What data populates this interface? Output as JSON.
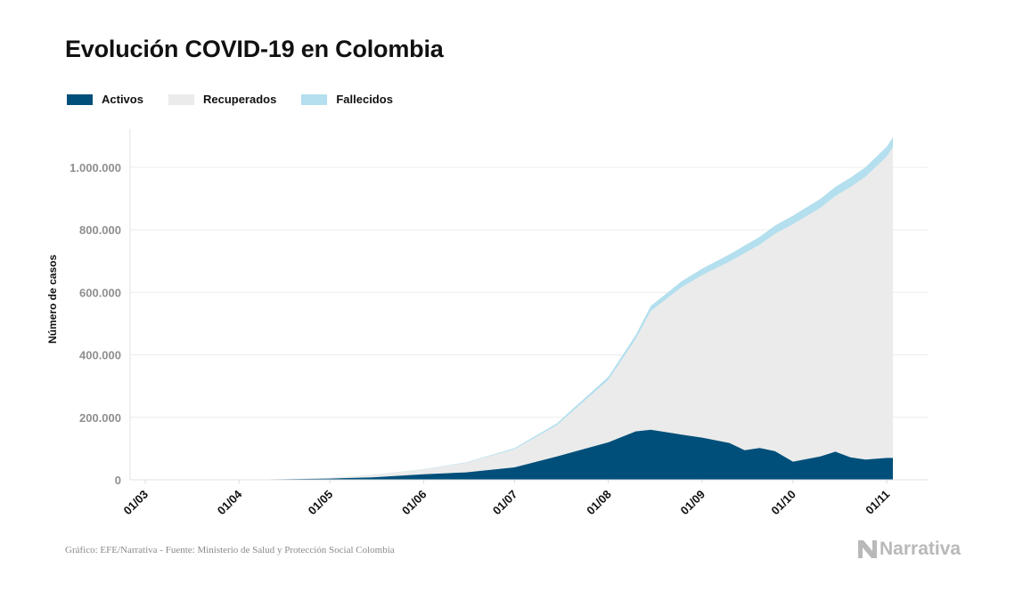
{
  "title": "Evolución COVID-19 en Colombia",
  "legend": [
    {
      "label": "Activos",
      "color": "#004f7a"
    },
    {
      "label": "Recuperados",
      "color": "#ebebeb"
    },
    {
      "label": "Fallecidos",
      "color": "#b3dfee"
    }
  ],
  "source": "Gráfico: EFE/Narrativa - Fuente: Ministerio de Salud y Protección Social Colombia",
  "logo_text": "Narrativa",
  "chart_data": {
    "type": "area",
    "stacked": true,
    "title": "Evolución COVID-19 en Colombia",
    "ylabel": "Número de casos",
    "xlabel": "",
    "ylim": [
      0,
      1100000
    ],
    "yticks": [
      0,
      200000,
      400000,
      600000,
      800000,
      1000000
    ],
    "ytick_labels": [
      "0",
      "200.000",
      "400.000",
      "600.000",
      "800.000",
      "1.000.000"
    ],
    "xtick_dates": [
      "2020-03-01",
      "2020-04-01",
      "2020-05-01",
      "2020-06-01",
      "2020-07-01",
      "2020-08-01",
      "2020-09-01",
      "2020-10-01",
      "2020-11-01"
    ],
    "xtick_labels": [
      "01/03",
      "01/04",
      "01/05",
      "01/06",
      "01/07",
      "01/08",
      "01/09",
      "01/10",
      "01/11"
    ],
    "xlim": [
      "2020-03-01",
      "2020-11-03"
    ],
    "grid": true,
    "legend_position": "top-left",
    "dates": [
      "2020-03-01",
      "2020-03-15",
      "2020-04-01",
      "2020-04-15",
      "2020-05-01",
      "2020-05-15",
      "2020-06-01",
      "2020-06-15",
      "2020-07-01",
      "2020-07-15",
      "2020-08-01",
      "2020-08-10",
      "2020-08-15",
      "2020-08-25",
      "2020-09-01",
      "2020-09-10",
      "2020-09-15",
      "2020-09-20",
      "2020-09-25",
      "2020-10-01",
      "2020-10-10",
      "2020-10-15",
      "2020-10-20",
      "2020-10-25",
      "2020-11-01",
      "2020-11-03"
    ],
    "series": [
      {
        "name": "Activos",
        "color": "#004f7a",
        "values": [
          0,
          100,
          800,
          1800,
          4000,
          8000,
          18000,
          24000,
          40000,
          75000,
          120000,
          155000,
          160000,
          145000,
          135000,
          118000,
          95000,
          102000,
          92000,
          58000,
          75000,
          90000,
          72000,
          65000,
          70000,
          70000
        ]
      },
      {
        "name": "Recuperados",
        "color": "#ebebeb",
        "values": [
          0,
          0,
          50,
          500,
          2500,
          8000,
          15000,
          30000,
          58000,
          100000,
          200000,
          295000,
          380000,
          470000,
          520000,
          580000,
          630000,
          650000,
          695000,
          760000,
          795000,
          818000,
          865000,
          905000,
          965000,
          995000
        ]
      },
      {
        "name": "Fallecidos",
        "color": "#b3dfee",
        "values": [
          0,
          0,
          30,
          100,
          250,
          600,
          1100,
          1900,
          3400,
          6000,
          10000,
          13000,
          16000,
          19000,
          21000,
          23500,
          24500,
          25500,
          26500,
          27500,
          29000,
          29500,
          30000,
          30500,
          31000,
          31500
        ]
      }
    ]
  }
}
